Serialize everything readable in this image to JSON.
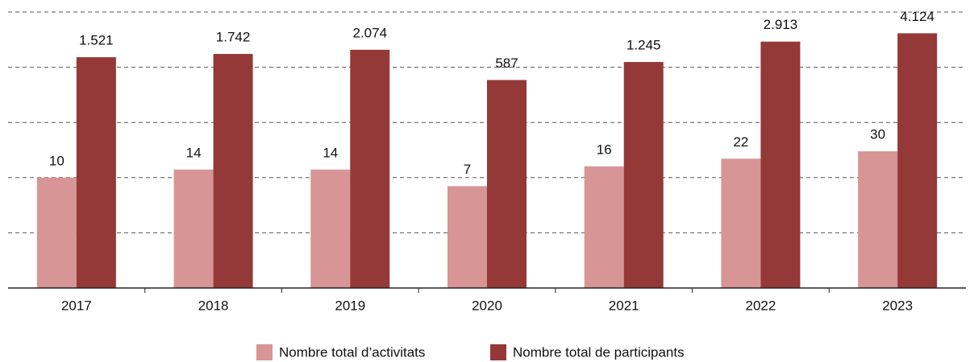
{
  "chart_data": {
    "type": "bar",
    "categories": [
      "2017",
      "2018",
      "2019",
      "2020",
      "2021",
      "2022",
      "2023"
    ],
    "series": [
      {
        "name": "Nombre total d’activitats",
        "color": "#d79595",
        "values": [
          10,
          14,
          14,
          7,
          16,
          22,
          30
        ]
      },
      {
        "name": "Nombre total de participants",
        "color": "#943838",
        "values": [
          1521,
          1742,
          2074,
          587,
          1245,
          2913,
          4124
        ],
        "value_labels": [
          "1.521",
          "1.742",
          "2.074",
          "587",
          "1.245",
          "2.913",
          "4.124"
        ]
      }
    ],
    "log_scale": true,
    "ylim": [
      0.1,
      10000
    ],
    "yticks": [
      1,
      10,
      100,
      1000,
      10000
    ],
    "show_ytick_labels": false,
    "grid": true,
    "legend": "bottom"
  }
}
